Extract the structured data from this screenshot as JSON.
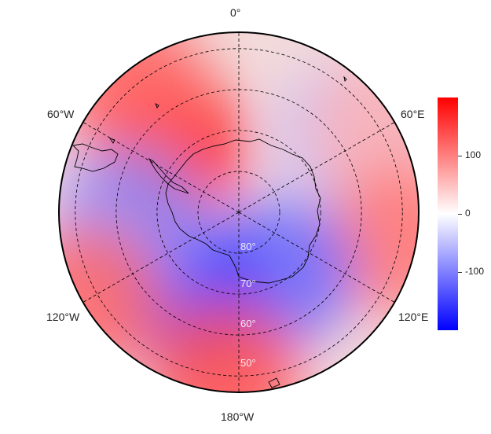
{
  "map": {
    "projection": "south-polar-stereographic",
    "longitude_labels": {
      "top": "0°",
      "upper_left": "60°W",
      "upper_right": "60°E",
      "lower_left": "120°W",
      "lower_right": "120°E",
      "bottom": "180°W"
    },
    "latitude_labels": [
      "50°",
      "60°",
      "70°",
      "80°"
    ],
    "colormap": {
      "high": "#ff0000",
      "mid": "#ffffff",
      "low": "#0000ff"
    },
    "grid": "dashed",
    "field": [
      {
        "lon": -45,
        "lat": -67,
        "value": 190
      },
      {
        "lon": -40,
        "lat": -50,
        "value": 120
      },
      {
        "lon": 55,
        "lat": -57,
        "value": -50
      },
      {
        "lon": 60,
        "lat": -50,
        "value": 60
      },
      {
        "lon": 100,
        "lat": -50,
        "value": 110
      },
      {
        "lon": 145,
        "lat": -72,
        "value": -120
      },
      {
        "lon": -150,
        "lat": -67,
        "value": -150
      },
      {
        "lon": -95,
        "lat": -63,
        "value": -90
      },
      {
        "lon": -175,
        "lat": -50,
        "value": 140
      },
      {
        "lon": -120,
        "lat": -48,
        "value": 120
      }
    ]
  },
  "colorbar": {
    "range": [
      -200,
      200
    ],
    "ticks": [
      {
        "value": 100,
        "label": "100"
      },
      {
        "value": 0,
        "label": "0"
      },
      {
        "value": -100,
        "label": "-100"
      }
    ]
  }
}
